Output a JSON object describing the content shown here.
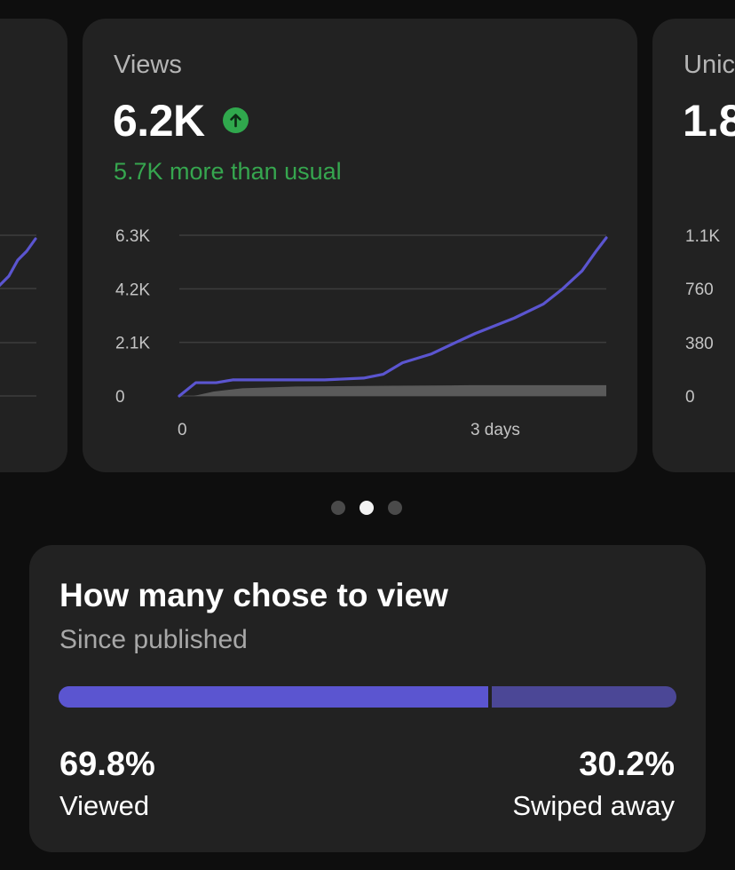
{
  "colors": {
    "page_bg": "#0e0e0e",
    "card_bg": "#222222",
    "accent_purple": "#5b55d0",
    "accent_purple_dim": "#4b4796",
    "positive_green": "#36a64f",
    "baseline_gray": "#5a5a5a"
  },
  "carousel": {
    "active_index": 1,
    "count": 3,
    "cards": [
      {
        "title": "",
        "value": "",
        "y_ticks": [],
        "x_ticks": []
      },
      {
        "title": "Views",
        "value": "6.2K",
        "trend_icon": "arrow-up-circle-icon",
        "subtitle": "5.7K more than usual",
        "y_ticks": [
          "6.3K",
          "4.2K",
          "2.1K",
          "0"
        ],
        "x_ticks": [
          "0",
          "3 days"
        ]
      },
      {
        "title": "Unic",
        "value": "1.8",
        "y_ticks": [
          "1.1K",
          "760",
          "380",
          "0"
        ],
        "x_ticks": []
      }
    ]
  },
  "chart_data": {
    "type": "line",
    "title": "Views",
    "xlabel": "",
    "ylabel": "",
    "ylim": [
      0,
      6300
    ],
    "xlim": [
      0,
      4.4
    ],
    "y_tick_labels": [
      "0",
      "2.1K",
      "4.2K",
      "6.3K"
    ],
    "x_tick_labels": [
      "0",
      "3 days"
    ],
    "grid": true,
    "series": [
      {
        "kind": "line",
        "color": "#5b55d0",
        "x": [
          0,
          0.17,
          0.38,
          0.55,
          1.0,
          1.5,
          1.9,
          2.1,
          2.3,
          2.6,
          2.85,
          3.05,
          3.25,
          3.45,
          3.75,
          3.95,
          4.15,
          4.3,
          4.4
        ],
        "y": [
          0,
          520,
          520,
          630,
          630,
          630,
          700,
          850,
          1300,
          1650,
          2100,
          2450,
          2750,
          3050,
          3600,
          4200,
          4900,
          5700,
          6200
        ]
      },
      {
        "kind": "area",
        "color": "#5a5a5a",
        "x": [
          0.15,
          0.35,
          0.65,
          1.2,
          2.2,
          3.0,
          4.4
        ],
        "y": [
          0,
          170,
          300,
          370,
          400,
          420,
          420
        ]
      }
    ]
  },
  "view_card": {
    "title": "How many chose to view",
    "subtitle": "Since published",
    "viewed": {
      "percent": "69.8%",
      "label": "Viewed",
      "fraction": 0.698
    },
    "swiped": {
      "percent": "30.2%",
      "label": "Swiped away",
      "fraction": 0.302
    }
  }
}
